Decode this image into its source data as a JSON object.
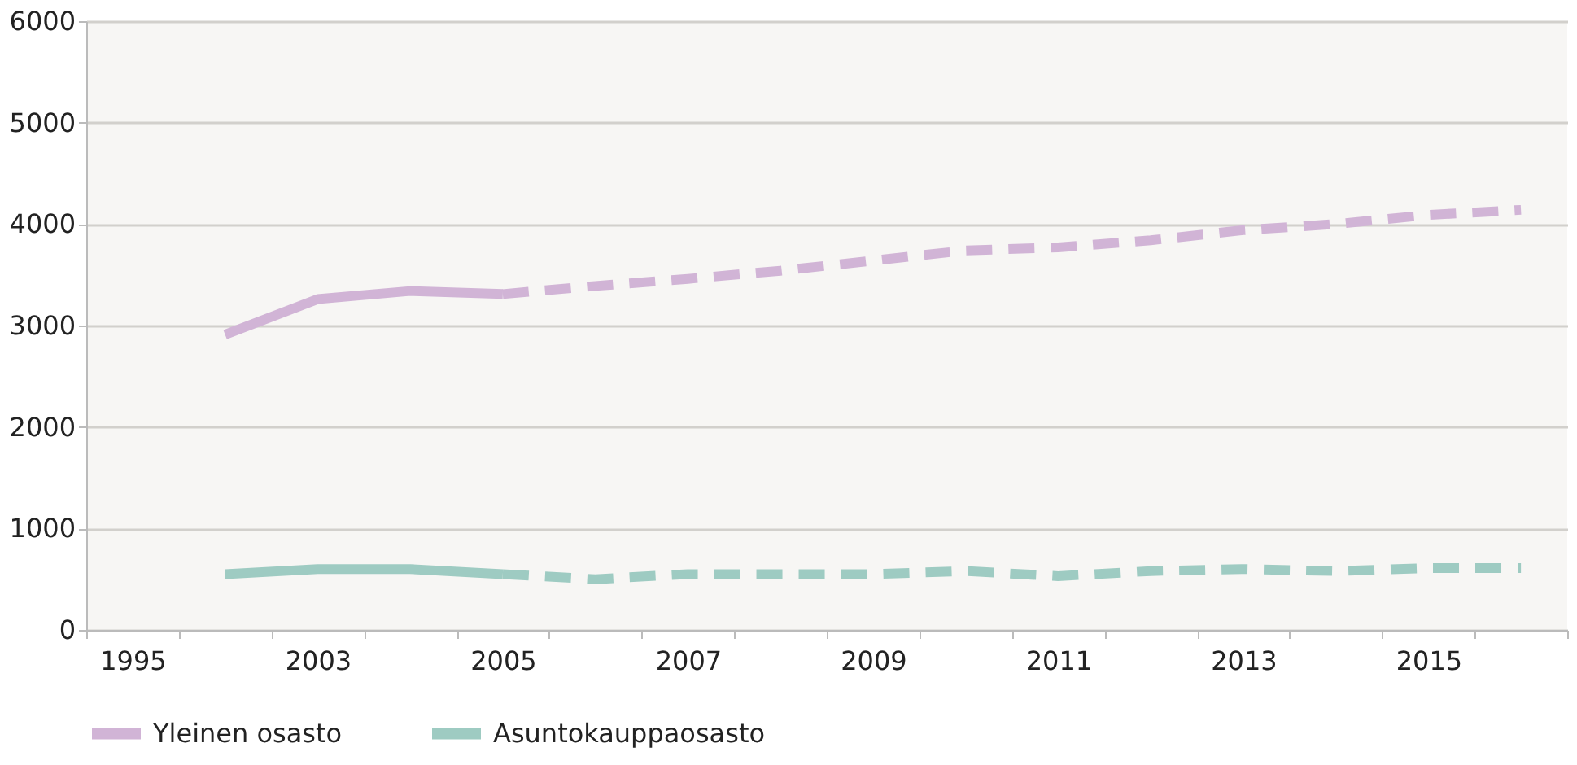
{
  "chart_data": {
    "type": "line",
    "categories": [
      "1995",
      null,
      "2003",
      null,
      "2005",
      null,
      "2007",
      null,
      "2009",
      null,
      "2011",
      null,
      "2013",
      null,
      "2015",
      null
    ],
    "ylim": [
      0,
      6000
    ],
    "yticks": [
      0,
      1000,
      2000,
      3000,
      4000,
      5000,
      6000
    ],
    "grid": "y",
    "legend": "bottom",
    "marker": "none",
    "series": [
      {
        "name": "Yleinen osasto",
        "color": "#d1b4d6",
        "line_style": "solid",
        "values": [
          null,
          2910,
          3260,
          3340,
          3310,
          null,
          null,
          null,
          null,
          null,
          null,
          null,
          null,
          null,
          null,
          null
        ]
      },
      {
        "name": "Asuntokauppaosasto",
        "color": "#9ecbc2",
        "line_style": "solid",
        "values": [
          null,
          550,
          600,
          600,
          550,
          null,
          null,
          null,
          null,
          null,
          null,
          null,
          null,
          null,
          null,
          null
        ]
      },
      {
        "color": "#d1b4d6",
        "line_style": "dashed",
        "values": [
          null,
          null,
          null,
          null,
          3310,
          3390,
          3460,
          3540,
          3640,
          3740,
          3770,
          3840,
          3940,
          4000,
          4090,
          4140
        ]
      },
      {
        "color": "#9ecbc2",
        "line_style": "dashed",
        "values": [
          null,
          null,
          null,
          null,
          550,
          500,
          550,
          550,
          550,
          580,
          530,
          580,
          600,
          580,
          610,
          610
        ]
      }
    ]
  }
}
